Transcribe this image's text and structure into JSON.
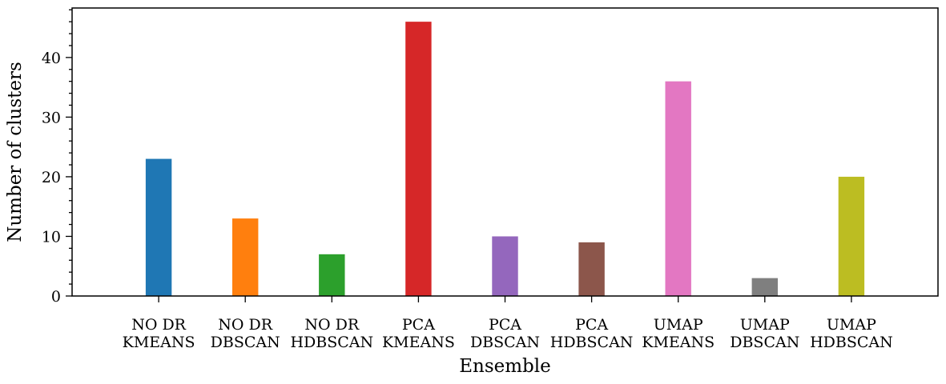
{
  "chart_data": {
    "type": "bar",
    "title": "",
    "xlabel": "Ensemble",
    "ylabel": "Number of clusters",
    "categories": [
      [
        "NO DR",
        "KMEANS"
      ],
      [
        "NO DR",
        "DBSCAN"
      ],
      [
        "NO DR",
        "HDBSCAN"
      ],
      [
        "PCA",
        "KMEANS"
      ],
      [
        "PCA",
        "DBSCAN"
      ],
      [
        "PCA",
        "HDBSCAN"
      ],
      [
        "UMAP",
        "KMEANS"
      ],
      [
        "UMAP",
        "DBSCAN"
      ],
      [
        "UMAP",
        "HDBSCAN"
      ]
    ],
    "values": [
      23,
      13,
      7,
      46,
      10,
      9,
      36,
      3,
      20
    ],
    "colors": [
      "#1f77b4",
      "#ff7f0e",
      "#2ca02c",
      "#d62728",
      "#9467bd",
      "#8c564b",
      "#e377c2",
      "#7f7f7f",
      "#bcbd22"
    ],
    "ylim": [
      0,
      48.3
    ],
    "xlim": [
      -1,
      9
    ],
    "yticks_major": [
      0,
      10,
      20,
      30,
      40
    ],
    "yticks_minor_step": 2,
    "grid": false,
    "legend": "none"
  }
}
